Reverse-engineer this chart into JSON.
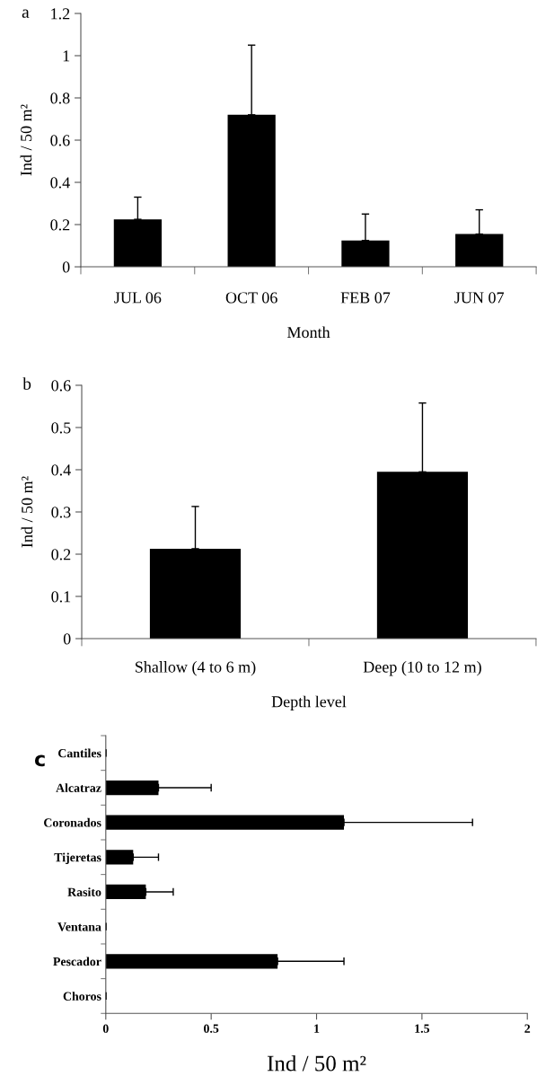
{
  "chart_data": [
    {
      "type": "bar",
      "title": "a",
      "xlabel": "Month",
      "ylabel": "Ind / 50 m²",
      "categories": [
        "JUL 06",
        "OCT 06",
        "FEB 07",
        "JUN 07"
      ],
      "values": [
        0.225,
        0.72,
        0.125,
        0.155
      ],
      "color": "#000000",
      "errors": [
        [
          0.225,
          0.33
        ],
        [
          0.72,
          1.05
        ],
        [
          0.125,
          0.25
        ],
        [
          0.155,
          0.27
        ]
      ],
      "ylim": [
        0,
        1.2
      ],
      "yticks": [
        0,
        0.2,
        0.4,
        0.6,
        0.8,
        1,
        1.2
      ],
      "grid": false,
      "legend": false
    },
    {
      "type": "bar",
      "title": "b",
      "xlabel": "Depth level",
      "ylabel": "Ind / 50 m²",
      "categories": [
        "Shallow (4 to 6 m)",
        "Deep (10 to 12 m)"
      ],
      "values": [
        0.213,
        0.395
      ],
      "color": "#000000",
      "errors": [
        [
          0.213,
          0.313
        ],
        [
          0.395,
          0.558
        ]
      ],
      "ylim": [
        0,
        0.6
      ],
      "yticks": [
        0,
        0.1,
        0.2,
        0.3,
        0.4,
        0.5,
        0.6
      ],
      "grid": false,
      "legend": false
    },
    {
      "type": "bar",
      "orientation": "horizontal",
      "title": "c",
      "xlabel": "Ind / 50 m²",
      "categories": [
        "Cantiles",
        "Alcatraz",
        "Coronados",
        "Tijeretas",
        "Rasito",
        "Ventana",
        "Pescador",
        "Choros"
      ],
      "values": [
        0,
        0.25,
        1.13,
        0.13,
        0.19,
        0,
        0.815,
        0
      ],
      "color": "#000000",
      "errors": [
        [
          0,
          0
        ],
        [
          0.25,
          0.5
        ],
        [
          1.13,
          1.74
        ],
        [
          0.13,
          0.25
        ],
        [
          0.19,
          0.32
        ],
        [
          0,
          0
        ],
        [
          0.815,
          1.13
        ],
        [
          0,
          0
        ]
      ],
      "xlim": [
        0,
        2
      ],
      "xticks": [
        0,
        0.5,
        1,
        1.5,
        2
      ],
      "grid": false,
      "legend": false
    }
  ]
}
